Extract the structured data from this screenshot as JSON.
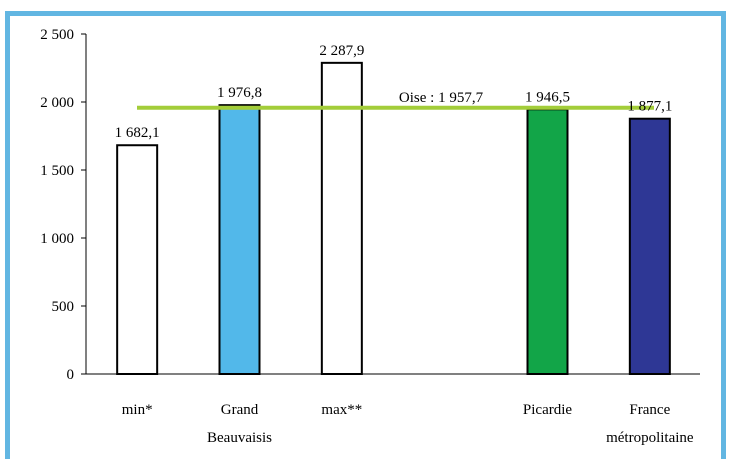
{
  "chart_data": {
    "type": "bar",
    "categories": [
      [
        "min*"
      ],
      [
        "Grand",
        "Beauvaisis"
      ],
      [
        "max**"
      ],
      [
        ""
      ],
      [
        "Picardie"
      ],
      [
        "France",
        "métropolitaine"
      ]
    ],
    "values": [
      1682.1,
      1976.8,
      2287.9,
      null,
      1946.5,
      1877.1
    ],
    "value_labels": [
      "1 682,1",
      "1 976,8",
      "2 287,9",
      "",
      "1 946,5",
      "1 877,1"
    ],
    "bar_colors": [
      "#ffffff",
      "#52b8ea",
      "#ffffff",
      "#ffffff",
      "#12a548",
      "#2e3795"
    ],
    "ylim": [
      0,
      2500
    ],
    "yticks": [
      0,
      500,
      1000,
      1500,
      2000,
      2500
    ],
    "ytick_labels": [
      "0",
      "500",
      "1 000",
      "1 500",
      "2 000",
      "2 500"
    ],
    "reference_line": {
      "value": 1957.7,
      "label": "Oise : 1 957,7",
      "color": "#a3cd39"
    },
    "grid": false,
    "title": "",
    "xlabel": "",
    "ylabel": ""
  },
  "colors": {
    "frame": "#62b6e2"
  }
}
